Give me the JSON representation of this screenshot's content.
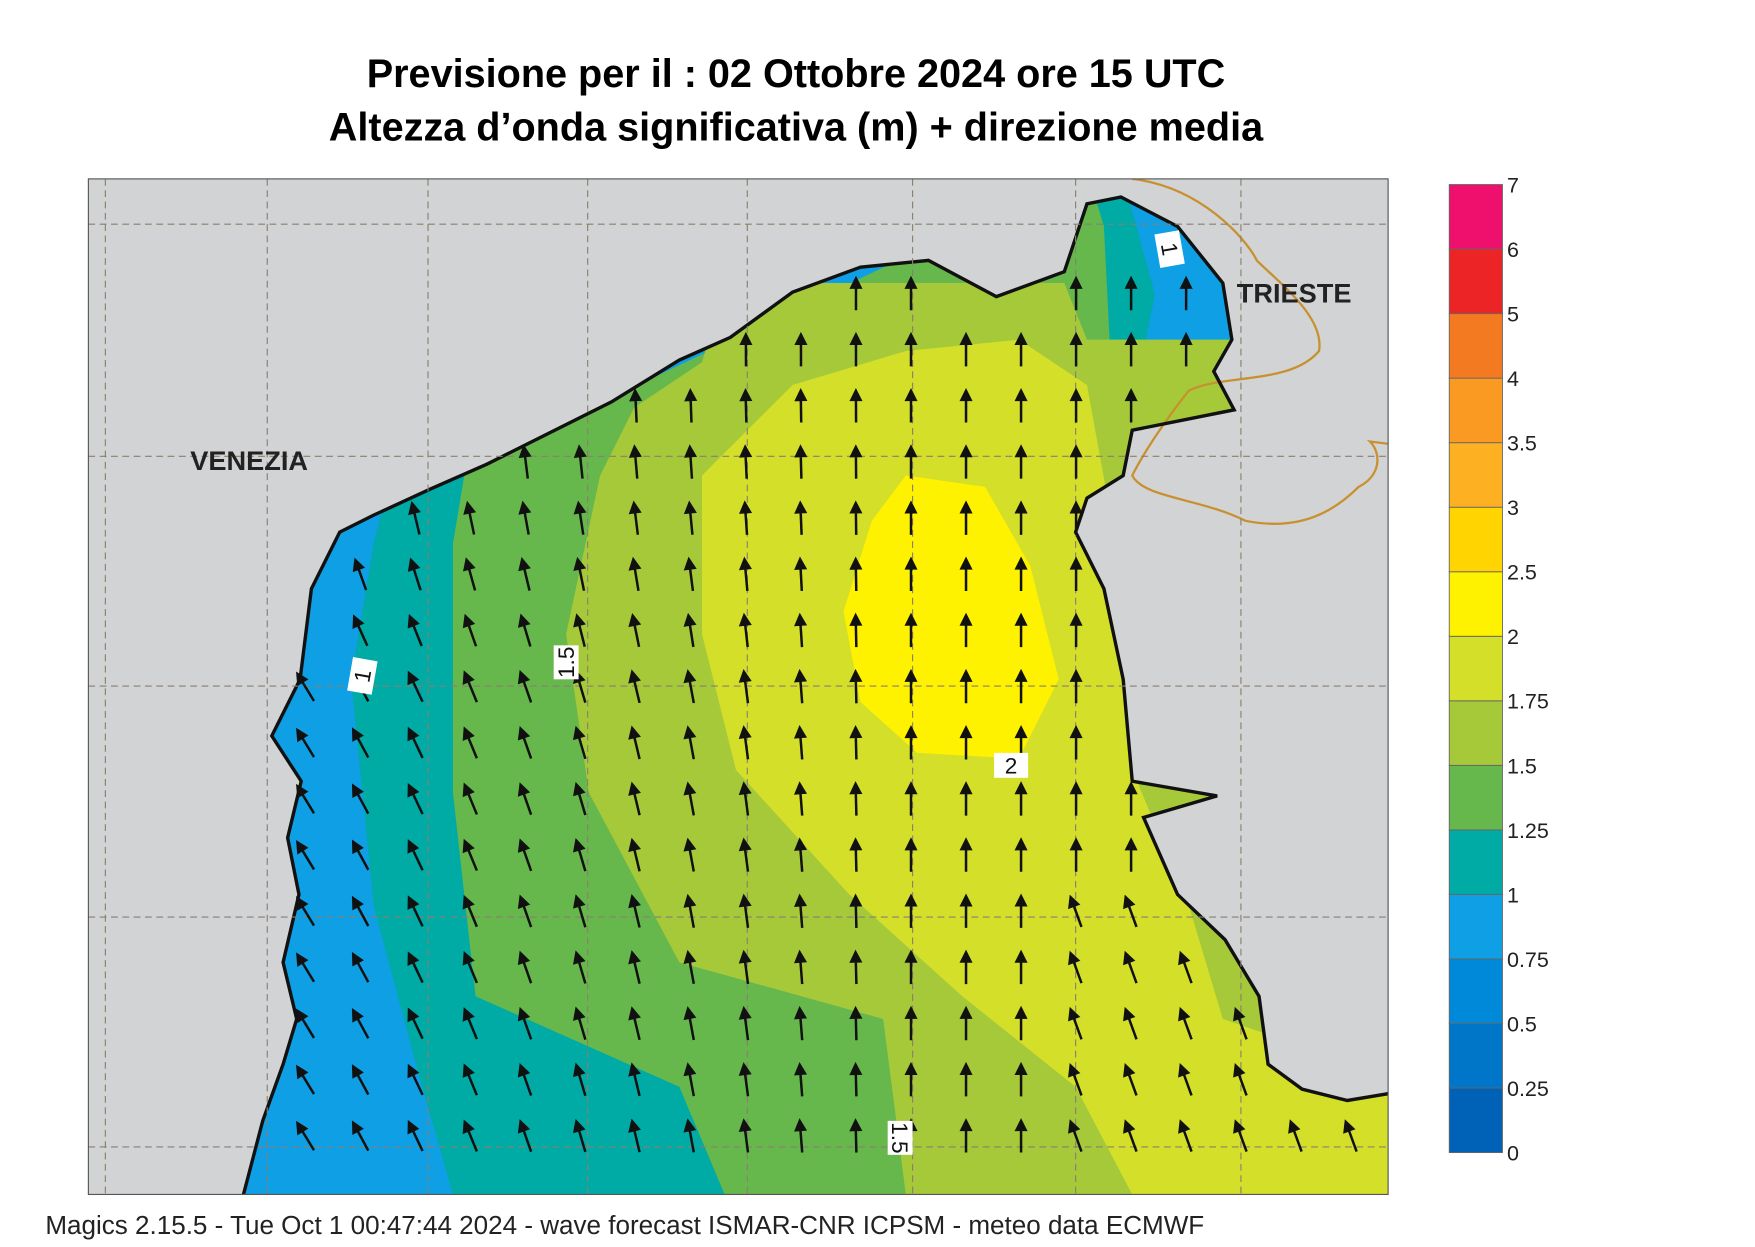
{
  "header": {
    "title_lines": [
      "Previsione per il  :  02  Ottobre  2024   ore 15 UTC",
      "Altezza d’onda significativa (m) + direzione media"
    ]
  },
  "map": {
    "places": [
      "VENEZIA",
      "TRIESTE"
    ],
    "contour_labels": [
      "1",
      "1.5",
      "2",
      "1",
      "1.5"
    ]
  },
  "colorbar": {
    "levels": [
      0,
      0.25,
      0.5,
      0.75,
      1,
      1.25,
      1.5,
      1.75,
      2,
      2.5,
      3,
      3.5,
      4,
      5,
      6,
      7
    ],
    "colors": [
      "#0062b6",
      "#0076c8",
      "#0089d8",
      "#0f9fe4",
      "#00aaa5",
      "#66b84c",
      "#a6c93a",
      "#d4df2a",
      "#fff200",
      "#ffd400",
      "#fdb022",
      "#fb9a22",
      "#f47a22",
      "#ec2426",
      "#ef0f6c"
    ]
  },
  "footer": {
    "text": "Magics 2.15.5 - Tue Oct  1 00:47:44 2024 - wave forecast  ISMAR-CNR  ICPSM - meteo data   ECMWF"
  }
}
